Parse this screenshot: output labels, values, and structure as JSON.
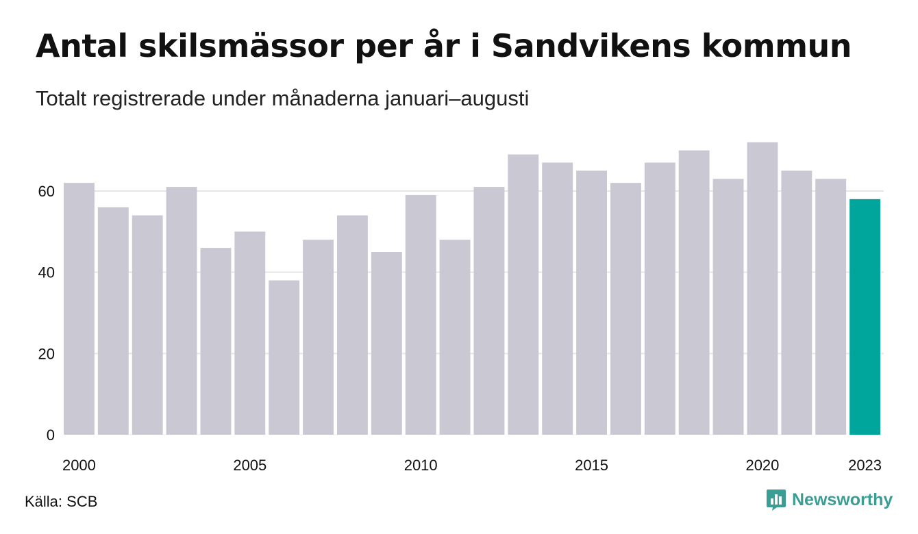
{
  "title": "Antal skilsmässor per år i Sandvikens kommun",
  "subtitle": "Totalt registrerade under månaderna januari–augusti",
  "source": "Källa: SCB",
  "brand": {
    "name": "Newsworthy",
    "icon": "newsworthy-logo-icon"
  },
  "colors": {
    "bar": "#c9c8d3",
    "highlight": "#00a59b",
    "grid": "#e6e6e6",
    "brand": "#3a9e95"
  },
  "chart_data": {
    "type": "bar",
    "categories": [
      "2000",
      "2001",
      "2002",
      "2003",
      "2004",
      "2005",
      "2006",
      "2007",
      "2008",
      "2009",
      "2010",
      "2011",
      "2012",
      "2013",
      "2014",
      "2015",
      "2016",
      "2017",
      "2018",
      "2019",
      "2020",
      "2021",
      "2022",
      "2023"
    ],
    "values": [
      62,
      56,
      54,
      61,
      46,
      50,
      38,
      48,
      54,
      45,
      59,
      48,
      61,
      69,
      67,
      65,
      62,
      67,
      70,
      63,
      72,
      65,
      63,
      58
    ],
    "highlight_category": "2023",
    "xtick_labels": [
      "2000",
      "2005",
      "2010",
      "2015",
      "2020",
      "2023"
    ],
    "ytick_labels": [
      "0",
      "20",
      "40",
      "60"
    ],
    "yticks": [
      0,
      20,
      40,
      60
    ],
    "ylim": [
      0,
      75
    ],
    "grid": "horizontal",
    "legend": "none"
  }
}
